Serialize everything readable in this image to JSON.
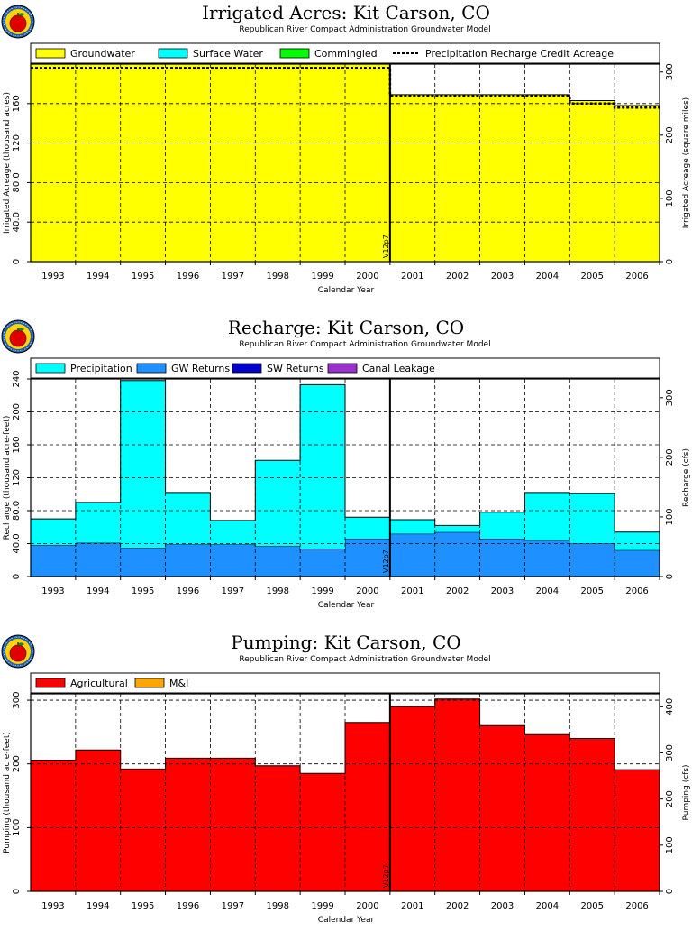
{
  "chart_data": [
    {
      "type": "area",
      "title": "Irrigated Acres: Kit Carson, CO",
      "subtitle": "Republican River Compact Administration Groundwater Model",
      "xlabel": "Calendar Year",
      "ylabel": "Irrigated Acreage (thousand acres)",
      "y2label": "Irrigated Acreage (square miles)",
      "categories": [
        "1993",
        "1994",
        "1995",
        "1996",
        "1997",
        "1998",
        "1999",
        "2000",
        "2001",
        "2002",
        "2003",
        "2004",
        "2005",
        "2006"
      ],
      "ylim": [
        0,
        200
      ],
      "yticks": [
        "0",
        "40.0",
        "80.0",
        "120",
        "160"
      ],
      "y2lim": [
        0,
        312.5
      ],
      "y2ticks": [
        "0",
        "100",
        "200",
        "300"
      ],
      "version_marker": {
        "label": "V12p7",
        "after": "2000"
      },
      "legend": [
        {
          "name": "Groundwater",
          "color": "#ffff00"
        },
        {
          "name": "Surface Water",
          "color": "#00ffff"
        },
        {
          "name": "Commingled",
          "color": "#00ff00"
        },
        {
          "name": "Precipitation Recharge Credit Acreage",
          "style": "dashed"
        }
      ],
      "series": [
        {
          "name": "Groundwater",
          "color": "#ffff00",
          "values": [
            200,
            200,
            200,
            200,
            200,
            200,
            200,
            200,
            169,
            169,
            169,
            169,
            163,
            158
          ]
        },
        {
          "name": "Surface Water",
          "color": "#00ffff",
          "values": [
            0,
            0,
            0,
            0,
            0,
            0,
            0,
            0,
            0,
            0,
            0,
            0,
            0,
            0
          ]
        },
        {
          "name": "Commingled",
          "color": "#00ff00",
          "values": [
            0,
            0,
            0,
            0,
            0,
            0,
            0,
            0,
            0,
            0,
            0,
            0,
            0,
            0
          ]
        }
      ],
      "dashed_series": {
        "name": "Precipitation Recharge Credit Acreage",
        "values": [
          196,
          196,
          196,
          196,
          196,
          196,
          196,
          196,
          168,
          168,
          168,
          168,
          160,
          156
        ]
      }
    },
    {
      "type": "area",
      "title": "Recharge: Kit Carson, CO",
      "subtitle": "Republican River Compact Administration Groundwater Model",
      "xlabel": "Calendar Year",
      "ylabel": "Recharge (thousand acre-feet)",
      "y2label": "Recharge (cfs)",
      "categories": [
        "1993",
        "1994",
        "1995",
        "1996",
        "1997",
        "1998",
        "1999",
        "2000",
        "2001",
        "2002",
        "2003",
        "2004",
        "2005",
        "2006"
      ],
      "ylim": [
        0,
        240
      ],
      "yticks": [
        "0",
        "40.0",
        "80.0",
        "120",
        "160",
        "200",
        "240"
      ],
      "y2lim": [
        0,
        331.5
      ],
      "y2ticks": [
        "0",
        "100",
        "200",
        "300"
      ],
      "version_marker": {
        "label": "V12p7",
        "after": "2000"
      },
      "legend": [
        {
          "name": "Precipitation",
          "color": "#00ffff"
        },
        {
          "name": "GW Returns",
          "color": "#1e90ff"
        },
        {
          "name": "SW Returns",
          "color": "#0000cd"
        },
        {
          "name": "Canal Leakage",
          "color": "#9932cc"
        }
      ],
      "series": [
        {
          "name": "GW Returns",
          "color": "#1e90ff",
          "values": [
            38,
            41,
            35,
            39,
            39,
            37,
            34,
            46,
            52,
            54,
            46,
            44,
            40,
            32
          ]
        },
        {
          "name": "Precipitation",
          "color": "#00ffff",
          "values": [
            32,
            49,
            203,
            63,
            29,
            104,
            199,
            26,
            17,
            8,
            32,
            58,
            61,
            22
          ]
        },
        {
          "name": "SW Returns",
          "color": "#0000cd",
          "values": [
            0,
            0,
            0,
            0,
            0,
            0,
            0,
            0,
            0,
            0,
            0,
            0,
            0,
            0
          ]
        },
        {
          "name": "Canal Leakage",
          "color": "#9932cc",
          "values": [
            0,
            0,
            0,
            0,
            0,
            0,
            0,
            0,
            0,
            0,
            0,
            0,
            0,
            0
          ]
        }
      ]
    },
    {
      "type": "area",
      "title": "Pumping: Kit Carson, CO",
      "subtitle": "Republican River Compact Administration Groundwater Model",
      "xlabel": "Calendar Year",
      "ylabel": "Pumping (thousand acre-feet)",
      "y2label": "Pumping (cfs)",
      "categories": [
        "1993",
        "1994",
        "1995",
        "1996",
        "1997",
        "1998",
        "1999",
        "2000",
        "2001",
        "2002",
        "2003",
        "2004",
        "2005",
        "2006"
      ],
      "ylim": [
        0,
        310
      ],
      "yticks": [
        "0",
        "100",
        "200",
        "300"
      ],
      "y2lim": [
        0,
        428
      ],
      "y2ticks": [
        "0",
        "100",
        "200",
        "300",
        "400"
      ],
      "version_marker": {
        "label": "V12p7",
        "after": "2000"
      },
      "legend": [
        {
          "name": "Agricultural",
          "color": "#ff0000"
        },
        {
          "name": "M&I",
          "color": "#ffa500"
        }
      ],
      "series": [
        {
          "name": "Agricultural",
          "color": "#ff0000",
          "values": [
            206,
            222,
            192,
            209,
            209,
            197,
            185,
            265,
            290,
            302,
            260,
            246,
            240,
            191
          ]
        },
        {
          "name": "M&I",
          "color": "#ffa500",
          "values": [
            0,
            0,
            0,
            0,
            0,
            0,
            0,
            0,
            0,
            0,
            0,
            0,
            0,
            0
          ]
        }
      ]
    }
  ]
}
